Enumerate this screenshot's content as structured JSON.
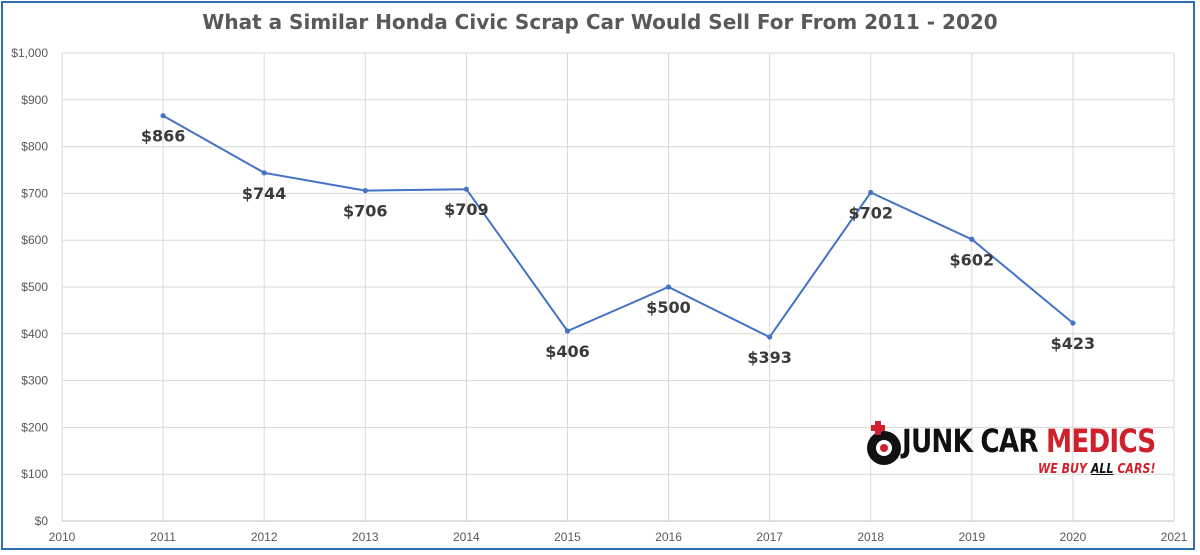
{
  "chart_data": {
    "type": "line",
    "title": "What a Similar Honda Civic Scrap Car Would Sell For From 2011 - 2020",
    "x": [
      2011,
      2012,
      2013,
      2014,
      2015,
      2016,
      2017,
      2018,
      2019,
      2020
    ],
    "values": [
      866,
      744,
      706,
      709,
      406,
      500,
      393,
      702,
      602,
      423
    ],
    "data_labels": [
      "$866",
      "$744",
      "$706",
      "$709",
      "$406",
      "$500",
      "$393",
      "$702",
      "$602",
      "$423"
    ],
    "x_ticks": [
      "2010",
      "2011",
      "2012",
      "2013",
      "2014",
      "2015",
      "2016",
      "2017",
      "2018",
      "2019",
      "2020",
      "2021"
    ],
    "y_ticks": [
      "$0",
      "$100",
      "$200",
      "$300",
      "$400",
      "$500",
      "$600",
      "$700",
      "$800",
      "$900",
      "$1,000"
    ],
    "xlim": [
      2010,
      2021
    ],
    "ylim": [
      0,
      1000
    ],
    "grid": true,
    "line_color": "#4472c4",
    "xlabel": "",
    "ylabel": ""
  },
  "logo": {
    "brand_part1": "JUNK CAR",
    "brand_part2": "MEDICS",
    "tagline_part1": "WE BUY ",
    "tagline_highlight": "ALL",
    "tagline_part2": " CARS!",
    "colors": {
      "red": "#d0202b",
      "black": "#111111"
    }
  }
}
